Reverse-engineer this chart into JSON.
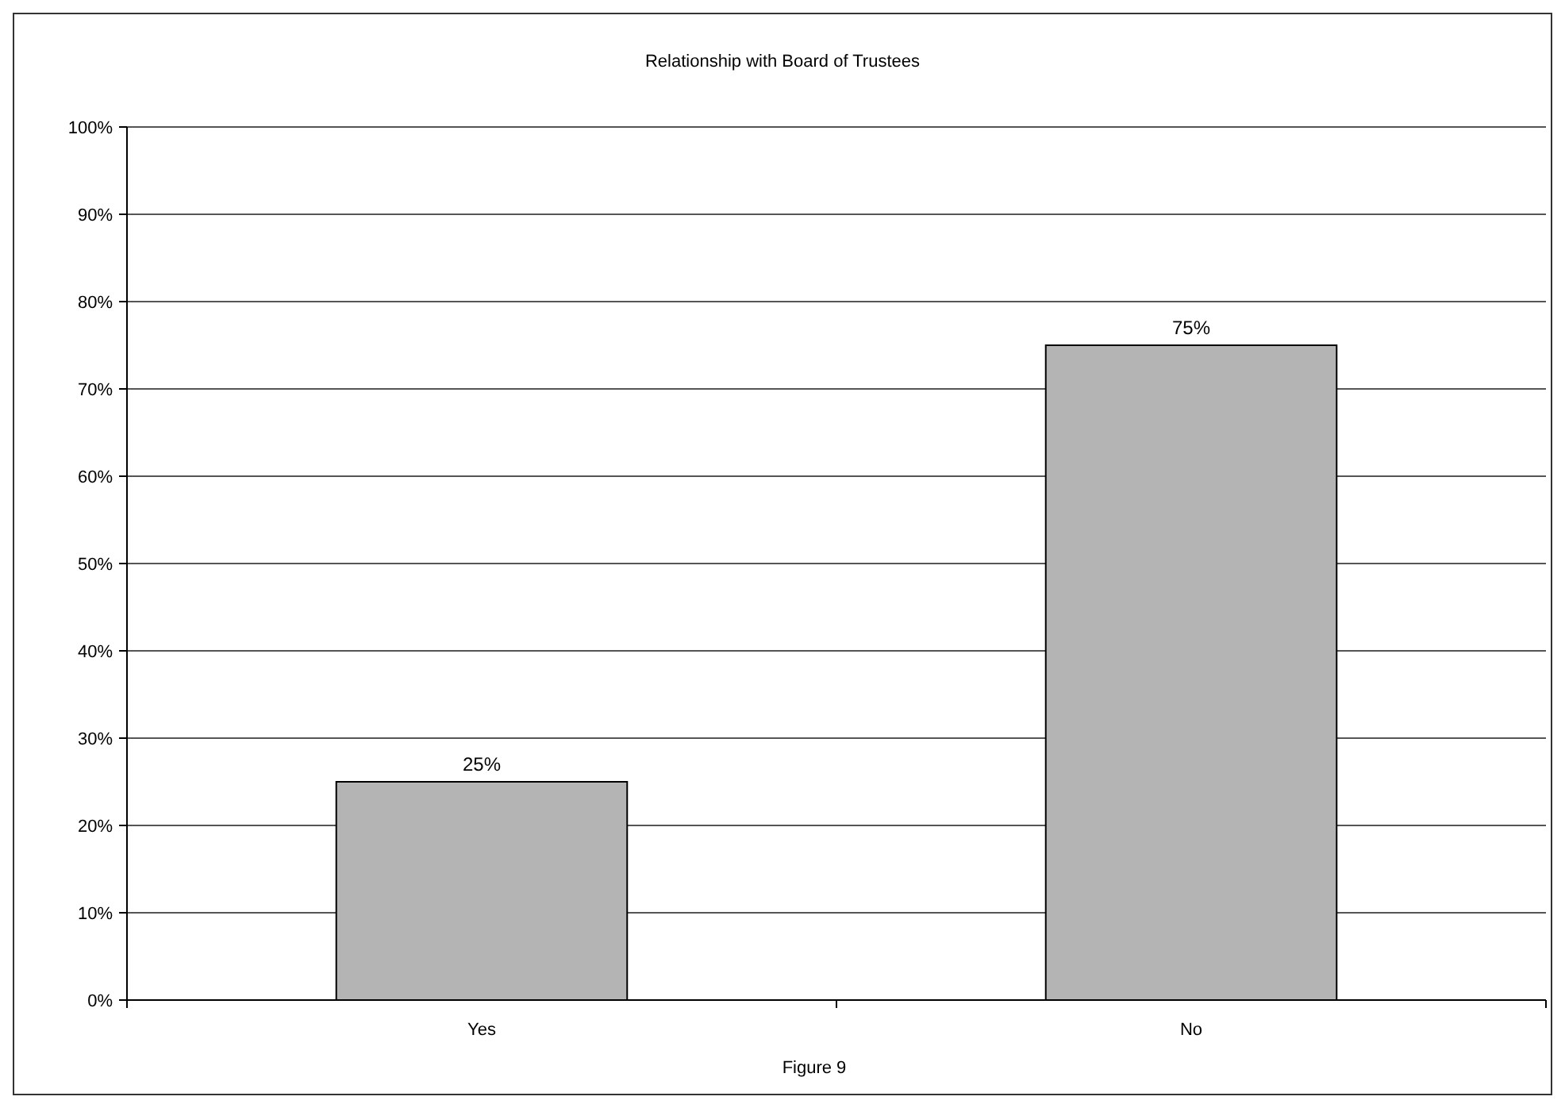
{
  "chart_data": {
    "type": "bar",
    "title": "Relationship with Board of Trustees",
    "categories": [
      "Yes",
      "No"
    ],
    "values": [
      25,
      75
    ],
    "value_labels": [
      "25%",
      "75%"
    ],
    "color": "#b4b4b4",
    "ylim": [
      0,
      100
    ],
    "yticks": [
      {
        "value": 0,
        "label": "0%"
      },
      {
        "value": 10,
        "label": "10%"
      },
      {
        "value": 20,
        "label": "20%"
      },
      {
        "value": 30,
        "label": "30%"
      },
      {
        "value": 40,
        "label": "40%"
      },
      {
        "value": 50,
        "label": "50%"
      },
      {
        "value": 60,
        "label": "60%"
      },
      {
        "value": 70,
        "label": "70%"
      },
      {
        "value": 80,
        "label": "80%"
      },
      {
        "value": 90,
        "label": "90%"
      },
      {
        "value": 100,
        "label": "100%"
      }
    ],
    "grid": "y",
    "annotations": [
      "Figure 9"
    ]
  }
}
